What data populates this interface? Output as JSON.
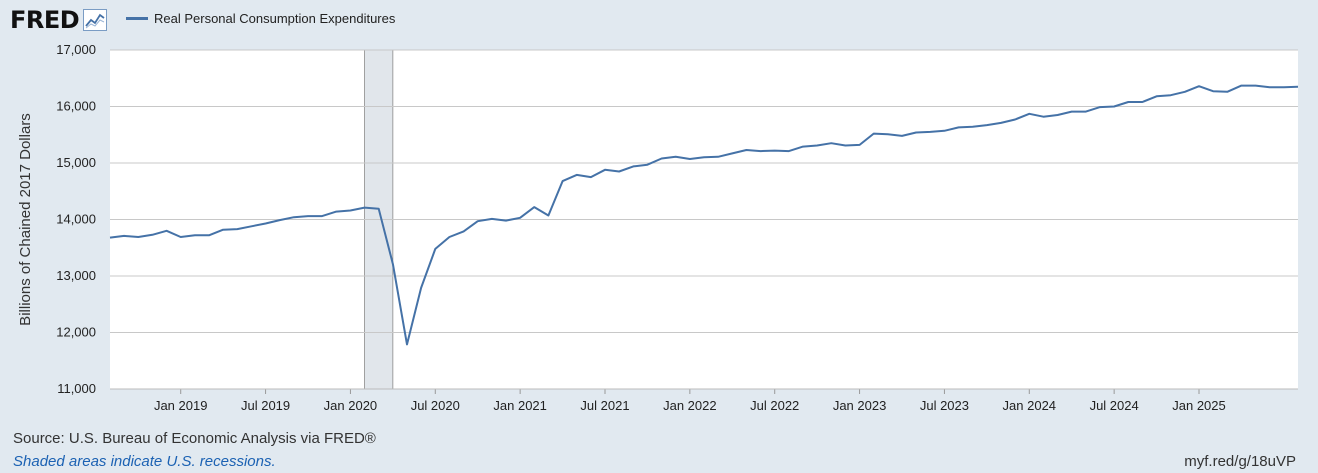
{
  "header": {
    "logo_text": "FRED",
    "logo_icon": "line-chart-icon"
  },
  "colors": {
    "background": "#e1e9f0",
    "plot_background": "#ffffff",
    "series_line": "#4572a7",
    "recession_shade": "#e1e6eb",
    "grid": "#c8c8c8"
  },
  "chart_data": {
    "type": "line",
    "ylabel": "Billions of Chained 2017 Dollars",
    "ylim": [
      11000,
      17000
    ],
    "yticks": [
      11000,
      12000,
      13000,
      14000,
      15000,
      16000,
      17000
    ],
    "ytick_labels": [
      "11,000",
      "12,000",
      "13,000",
      "14,000",
      "15,000",
      "16,000",
      "17,000"
    ],
    "xlim": [
      "2018-08",
      "2025-08"
    ],
    "xticks": [
      "2019-01",
      "2019-07",
      "2020-01",
      "2020-07",
      "2021-01",
      "2021-07",
      "2022-01",
      "2022-07",
      "2023-01",
      "2023-07",
      "2024-01",
      "2024-07",
      "2025-01"
    ],
    "xtick_labels": [
      "Jan 2019",
      "Jul 2019",
      "Jan 2020",
      "Jul 2020",
      "Jan 2021",
      "Jul 2021",
      "Jan 2022",
      "Jul 2022",
      "Jan 2023",
      "Jul 2023",
      "Jan 2024",
      "Jul 2024",
      "Jan 2025"
    ],
    "grid": "horizontal",
    "recessions": [
      {
        "start": "2020-02",
        "end": "2020-04"
      }
    ],
    "series": [
      {
        "name": "Real Personal Consumption Expenditures",
        "x": [
          "2018-08",
          "2018-09",
          "2018-10",
          "2018-11",
          "2018-12",
          "2019-01",
          "2019-02",
          "2019-03",
          "2019-04",
          "2019-05",
          "2019-06",
          "2019-07",
          "2019-08",
          "2019-09",
          "2019-10",
          "2019-11",
          "2019-12",
          "2020-01",
          "2020-02",
          "2020-03",
          "2020-04",
          "2020-05",
          "2020-06",
          "2020-07",
          "2020-08",
          "2020-09",
          "2020-10",
          "2020-11",
          "2020-12",
          "2021-01",
          "2021-02",
          "2021-03",
          "2021-04",
          "2021-05",
          "2021-06",
          "2021-07",
          "2021-08",
          "2021-09",
          "2021-10",
          "2021-11",
          "2021-12",
          "2022-01",
          "2022-02",
          "2022-03",
          "2022-04",
          "2022-05",
          "2022-06",
          "2022-07",
          "2022-08",
          "2022-09",
          "2022-10",
          "2022-11",
          "2022-12",
          "2023-01",
          "2023-02",
          "2023-03",
          "2023-04",
          "2023-05",
          "2023-06",
          "2023-07",
          "2023-08",
          "2023-09",
          "2023-10",
          "2023-11",
          "2023-12",
          "2024-01",
          "2024-02",
          "2024-03",
          "2024-04",
          "2024-05",
          "2024-06",
          "2024-07",
          "2024-08",
          "2024-09",
          "2024-10",
          "2024-11",
          "2024-12",
          "2025-01",
          "2025-02",
          "2025-03",
          "2025-04",
          "2025-05",
          "2025-06",
          "2025-07",
          "2025-08"
        ],
        "values": [
          13680,
          13710,
          13690,
          13730,
          13800,
          13690,
          13720,
          13720,
          13820,
          13830,
          13880,
          13930,
          13990,
          14040,
          14060,
          14060,
          14140,
          14160,
          14210,
          14190,
          13210,
          11790,
          12790,
          13480,
          13690,
          13790,
          13970,
          14010,
          13980,
          14030,
          14220,
          14070,
          14680,
          14790,
          14750,
          14880,
          14850,
          14940,
          14970,
          15080,
          15110,
          15070,
          15100,
          15110,
          15170,
          15230,
          15210,
          15220,
          15210,
          15290,
          15310,
          15350,
          15310,
          15320,
          15520,
          15510,
          15480,
          15540,
          15550,
          15570,
          15630,
          15640,
          15670,
          15710,
          15770,
          15870,
          15820,
          15850,
          15910,
          15910,
          15990,
          16000,
          16080,
          16080,
          16180,
          16200,
          16260,
          16360,
          16270,
          16260,
          16370,
          16370,
          16340,
          16340,
          16350
        ]
      }
    ]
  },
  "footer": {
    "source": "Source: U.S. Bureau of Economic Analysis via FRED®",
    "note": "Shaded areas indicate U.S. recessions.",
    "link": "myf.red/g/18uVP"
  }
}
